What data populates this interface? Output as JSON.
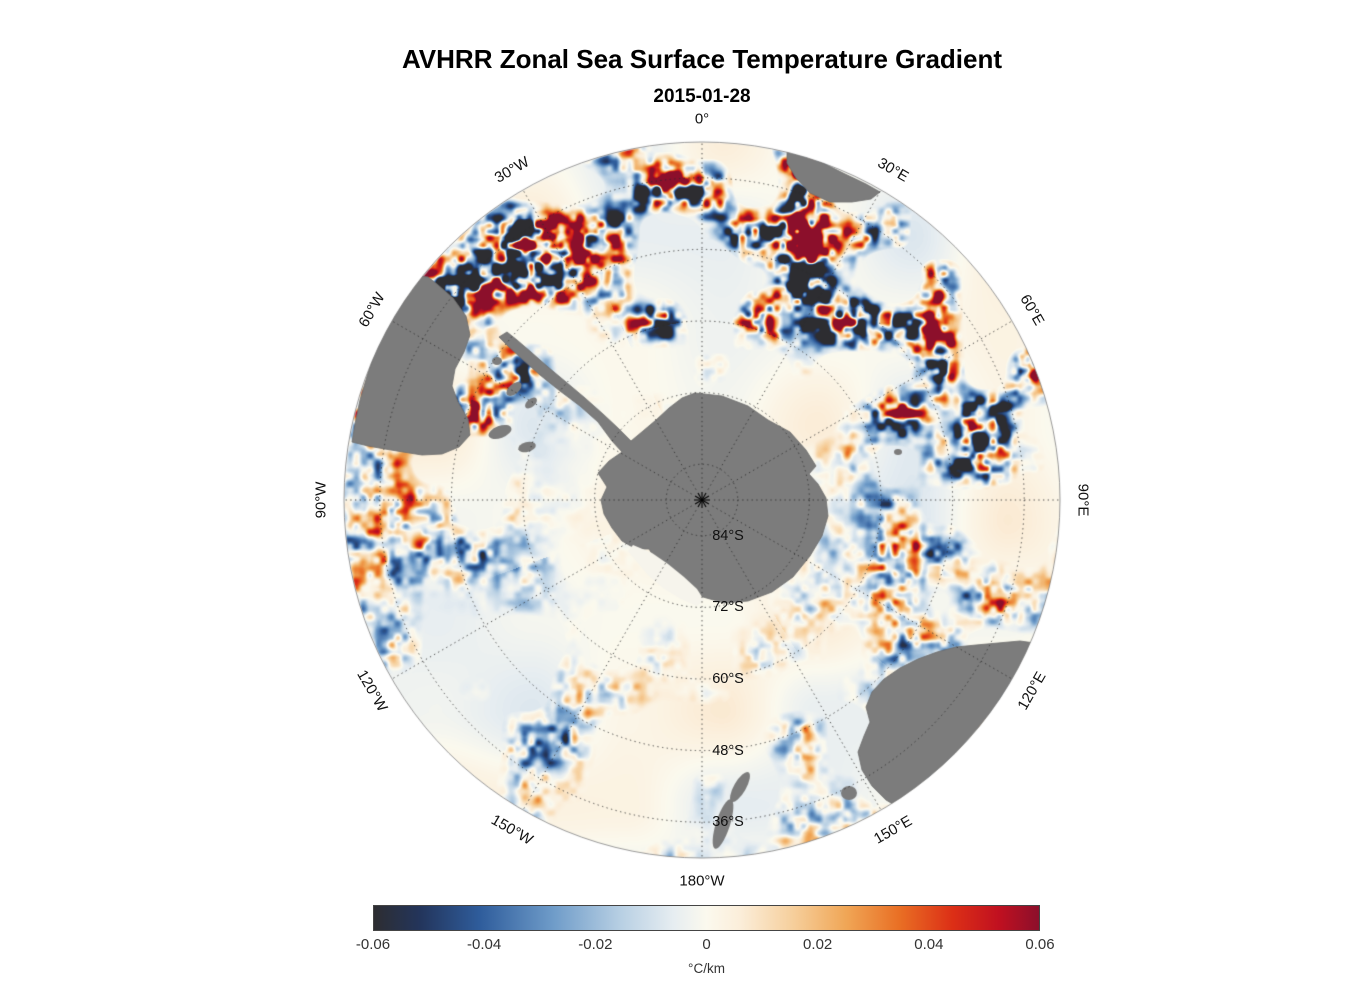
{
  "title": "AVHRR Zonal Sea Surface Temperature Gradient",
  "subtitle": "2015-01-28",
  "chart_data": {
    "type": "heatmap",
    "projection": "south polar stereographic",
    "variable": "zonal sea surface temperature gradient",
    "date": "2015-01-28",
    "units": "°C/km",
    "value_range": [
      -0.06,
      0.06
    ],
    "longitude_grid_step_deg": 30,
    "longitude_labels": [
      {
        "text": "0°",
        "lon": 0
      },
      {
        "text": "30°E",
        "lon": 30
      },
      {
        "text": "60°E",
        "lon": 60
      },
      {
        "text": "90°E",
        "lon": 90
      },
      {
        "text": "120°E",
        "lon": 120
      },
      {
        "text": "150°E",
        "lon": 150
      },
      {
        "text": "180°W",
        "lon": 180
      },
      {
        "text": "150°W",
        "lon": -150
      },
      {
        "text": "120°W",
        "lon": -120
      },
      {
        "text": "90°W",
        "lon": -90
      },
      {
        "text": "60°W",
        "lon": -60
      },
      {
        "text": "30°W",
        "lon": -30
      }
    ],
    "latitude_labels": [
      {
        "text": "84°S",
        "lat": -84
      },
      {
        "text": "72°S",
        "lat": -72
      },
      {
        "text": "60°S",
        "lat": -60
      },
      {
        "text": "48°S",
        "lat": -48
      },
      {
        "text": "36°S",
        "lat": -36
      }
    ],
    "latitude_circles": [
      -84,
      -72,
      -60,
      -48,
      -36
    ],
    "outer_latitude": -30,
    "colorbar": {
      "min": -0.06,
      "max": 0.06,
      "ticks": [
        "-0.06",
        "-0.04",
        "-0.02",
        "0",
        "0.02",
        "0.04",
        "0.06"
      ],
      "label": "°C/km",
      "stops": [
        {
          "pos": 0.0,
          "color": "#2d2d31"
        },
        {
          "pos": 0.07,
          "color": "#23355c"
        },
        {
          "pos": 0.16,
          "color": "#2f5d9c"
        },
        {
          "pos": 0.27,
          "color": "#6f9cc9"
        },
        {
          "pos": 0.37,
          "color": "#b7cfe3"
        },
        {
          "pos": 0.45,
          "color": "#e6edf1"
        },
        {
          "pos": 0.5,
          "color": "#fbf9ee"
        },
        {
          "pos": 0.55,
          "color": "#fbeeda"
        },
        {
          "pos": 0.63,
          "color": "#f6cf9c"
        },
        {
          "pos": 0.71,
          "color": "#f0a656"
        },
        {
          "pos": 0.79,
          "color": "#e96f24"
        },
        {
          "pos": 0.87,
          "color": "#dc2f16"
        },
        {
          "pos": 0.94,
          "color": "#c01020"
        },
        {
          "pos": 1.0,
          "color": "#8c0f2b"
        }
      ]
    },
    "land_color": "#7c7c7c",
    "ice_color": "#f6f4ec",
    "land_masses": [
      "Antarctica",
      "South America",
      "Africa",
      "Australia",
      "Tasmania",
      "New Zealand"
    ]
  }
}
